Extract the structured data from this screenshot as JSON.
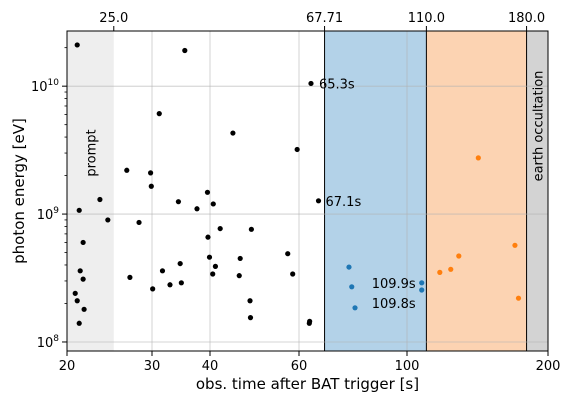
{
  "chart_data": {
    "type": "scatter",
    "xlabel": "obs. time after BAT trigger [s]",
    "ylabel": "photon energy [eV]",
    "xscale": "log-like",
    "yscale": "log",
    "xlim": [
      20,
      200
    ],
    "ylim": [
      85000000.0,
      27000000000.0
    ],
    "grid": true,
    "x_ticks": [
      {
        "value": 20,
        "label": "20"
      },
      {
        "value": 30,
        "label": "30"
      },
      {
        "value": 40,
        "label": "40"
      },
      {
        "value": 60,
        "label": "60"
      },
      {
        "value": 100,
        "label": "100"
      },
      {
        "value": 200,
        "label": "200"
      }
    ],
    "y_ticks": [
      {
        "value": 100000000.0,
        "base": "10",
        "exp": "8"
      },
      {
        "value": 1000000000.0,
        "base": "10",
        "exp": "9"
      },
      {
        "value": 10000000000.0,
        "base": "10",
        "exp": "10"
      }
    ],
    "top_ticks": [
      {
        "value": 25,
        "label": "25.0"
      },
      {
        "value": 67.71,
        "label": "67.71"
      },
      {
        "value": 110,
        "label": "110.0"
      },
      {
        "value": 180,
        "label": "180.0"
      }
    ],
    "regions": [
      {
        "from": 20,
        "to": 25,
        "color": "#eeeeee",
        "label": "prompt"
      },
      {
        "from": 67.71,
        "to": 110,
        "color": "#b3d2e8",
        "label": ""
      },
      {
        "from": 110,
        "to": 180,
        "color": "#fcd3b2",
        "label": ""
      },
      {
        "from": 180,
        "to": 200,
        "color": "#d3d3d3",
        "label": "earth occultation"
      }
    ],
    "series": [
      {
        "color": "#000000",
        "points": [
          [
            21.0,
            21000000000.0
          ],
          [
            21.2,
            1070000000.0
          ],
          [
            21.3,
            360000000.0
          ],
          [
            20.8,
            240000000.0
          ],
          [
            21.0,
            210000000.0
          ],
          [
            21.2,
            140000000.0
          ],
          [
            21.6,
            600000000.0
          ],
          [
            21.6,
            310000000.0
          ],
          [
            21.7,
            180000000.0
          ],
          [
            23.4,
            1300000000.0
          ],
          [
            24.3,
            900000000.0
          ],
          [
            26.6,
            2200000000.0
          ],
          [
            27.0,
            320000000.0
          ],
          [
            28.2,
            860000000.0
          ],
          [
            29.8,
            2100000000.0
          ],
          [
            29.9,
            1650000000.0
          ],
          [
            30.1,
            260000000.0
          ],
          [
            31.1,
            6100000000.0
          ],
          [
            31.6,
            360000000.0
          ],
          [
            32.8,
            280000000.0
          ],
          [
            34.2,
            1250000000.0
          ],
          [
            34.5,
            410000000.0
          ],
          [
            34.7,
            290000000.0
          ],
          [
            35.3,
            19000000000.0
          ],
          [
            37.5,
            1100000000.0
          ],
          [
            39.5,
            1480000000.0
          ],
          [
            39.6,
            660000000.0
          ],
          [
            39.9,
            460000000.0
          ],
          [
            40.5,
            340000000.0
          ],
          [
            40.6,
            1200000000.0
          ],
          [
            41.0,
            390000000.0
          ],
          [
            41.9,
            770000000.0
          ],
          [
            44.4,
            4300000000.0
          ],
          [
            45.7,
            330000000.0
          ],
          [
            45.9,
            450000000.0
          ],
          [
            48.0,
            210000000.0
          ],
          [
            48.1,
            155000000.0
          ],
          [
            48.3,
            760000000.0
          ],
          [
            57.0,
            490000000.0
          ],
          [
            58.3,
            340000000.0
          ],
          [
            59.5,
            3200000000.0
          ],
          [
            63.5,
            10500000000.0
          ],
          [
            63.1,
            145000000.0
          ],
          [
            63.0,
            140000000.0
          ],
          [
            65.8,
            1270000000.0
          ]
        ]
      },
      {
        "color": "#1f77b4",
        "points": [
          [
            76.0,
            385000000.0
          ],
          [
            77.0,
            270000000.0
          ],
          [
            78.2,
            185000000.0
          ],
          [
            107.5,
            290000000.0
          ],
          [
            107.5,
            255000000.0
          ]
        ]
      },
      {
        "color": "#ff7f0e",
        "points": [
          [
            117.5,
            350000000.0
          ],
          [
            124.0,
            370000000.0
          ],
          [
            129.0,
            470000000.0
          ],
          [
            142.0,
            2750000000.0
          ],
          [
            170.0,
            570000000.0
          ],
          [
            173.0,
            220000000.0
          ]
        ]
      }
    ],
    "annotations": [
      {
        "text": "65.3s",
        "x": 63.5,
        "y": 10500000000.0,
        "anchor": "start",
        "dx": 8,
        "dy": 0
      },
      {
        "text": "67.1s",
        "x": 65.8,
        "y": 1270000000.0,
        "anchor": "start",
        "dx": 7,
        "dy": 0
      },
      {
        "text": "109.9s",
        "x": 107.5,
        "y": 290000000.0,
        "anchor": "end",
        "dx": -6,
        "dy": 0
      },
      {
        "text": "109.8s",
        "x": 107.5,
        "y": 255000000.0,
        "anchor": "end",
        "dx": -6,
        "dy": 13
      }
    ]
  }
}
